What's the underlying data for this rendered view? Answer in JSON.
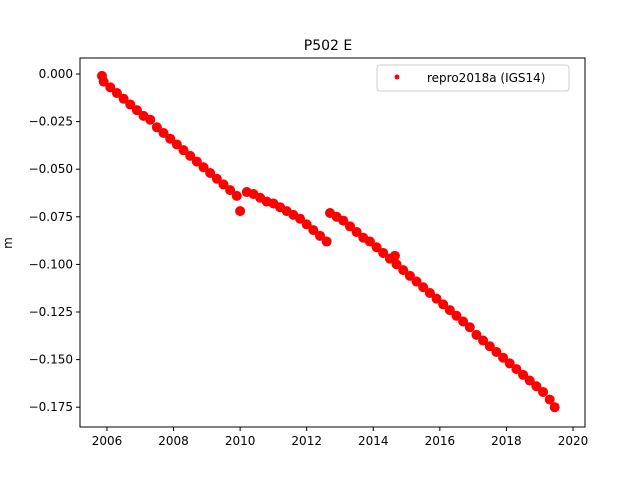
{
  "chart_data": {
    "type": "scatter",
    "title": "P502 E",
    "xlabel": "",
    "ylabel": "m",
    "xlim": [
      2005.19,
      2020.36
    ],
    "ylim": [
      -0.1854,
      0.0084
    ],
    "xticks": [
      2006,
      2008,
      2010,
      2012,
      2014,
      2016,
      2018,
      2020
    ],
    "xtick_labels": [
      "2006",
      "2008",
      "2010",
      "2012",
      "2014",
      "2016",
      "2018",
      "2020"
    ],
    "yticks": [
      0,
      -0.025,
      -0.05,
      -0.075,
      -0.1,
      -0.125,
      -0.15,
      -0.175
    ],
    "ytick_labels": [
      "0.000",
      "−0.025",
      "−0.050",
      "−0.075",
      "−0.100",
      "−0.125",
      "−0.150",
      "−0.175"
    ],
    "grid": false,
    "legend_position": "top-right",
    "series": [
      {
        "name": "repro2018a (IGS14)",
        "color": "#ff0000",
        "x": [
          2005.85,
          2005.9,
          2006.1,
          2006.3,
          2006.5,
          2006.7,
          2006.9,
          2007.1,
          2007.3,
          2007.5,
          2007.7,
          2007.9,
          2008.1,
          2008.3,
          2008.5,
          2008.7,
          2008.9,
          2009.1,
          2009.3,
          2009.5,
          2009.7,
          2009.9,
          2010.0,
          2010.2,
          2010.4,
          2010.6,
          2010.8,
          2011.0,
          2011.2,
          2011.4,
          2011.6,
          2011.8,
          2012.0,
          2012.2,
          2012.4,
          2012.6,
          2012.7,
          2012.9,
          2013.1,
          2013.3,
          2013.5,
          2013.7,
          2013.9,
          2014.1,
          2014.3,
          2014.5,
          2014.65,
          2014.7,
          2014.9,
          2015.1,
          2015.3,
          2015.5,
          2015.7,
          2015.9,
          2016.1,
          2016.3,
          2016.5,
          2016.7,
          2016.9,
          2017.1,
          2017.3,
          2017.5,
          2017.7,
          2017.9,
          2018.1,
          2018.3,
          2018.5,
          2018.7,
          2018.9,
          2019.1,
          2019.3,
          2019.45
        ],
        "y": [
          -0.001,
          -0.004,
          -0.007,
          -0.01,
          -0.013,
          -0.016,
          -0.019,
          -0.022,
          -0.024,
          -0.028,
          -0.031,
          -0.034,
          -0.037,
          -0.04,
          -0.043,
          -0.046,
          -0.049,
          -0.052,
          -0.055,
          -0.058,
          -0.061,
          -0.064,
          -0.072,
          -0.062,
          -0.063,
          -0.065,
          -0.067,
          -0.068,
          -0.07,
          -0.072,
          -0.074,
          -0.076,
          -0.079,
          -0.082,
          -0.085,
          -0.088,
          -0.073,
          -0.075,
          -0.077,
          -0.08,
          -0.083,
          -0.086,
          -0.088,
          -0.091,
          -0.094,
          -0.097,
          -0.0955,
          -0.1,
          -0.103,
          -0.106,
          -0.109,
          -0.112,
          -0.115,
          -0.118,
          -0.121,
          -0.124,
          -0.127,
          -0.13,
          -0.133,
          -0.137,
          -0.14,
          -0.143,
          -0.146,
          -0.149,
          -0.152,
          -0.155,
          -0.158,
          -0.161,
          -0.164,
          -0.167,
          -0.171,
          -0.175
        ]
      }
    ]
  }
}
